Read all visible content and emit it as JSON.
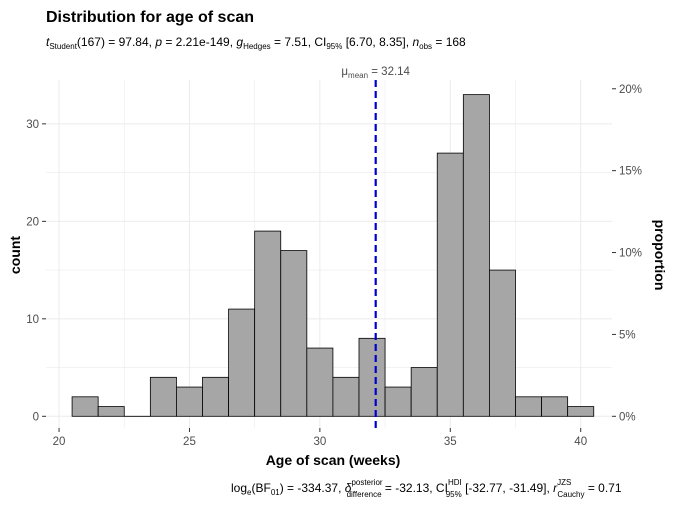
{
  "chart_data": {
    "type": "bar",
    "title": "Distribution for age of scan",
    "subtitle": {
      "stat_symbol": "t",
      "stat_sub": "Student",
      "stat_rest": "(167) = 97.84, ",
      "p_symbol": "p",
      "p_rest": " = 2.21e-149, ",
      "g_symbol": "g",
      "g_sub": "Hedges",
      "g_rest": " = 7.51, CI",
      "ci_sub": "95%",
      "ci_rest": " [6.70, 8.35], ",
      "n_symbol": "n",
      "n_sub": "obs",
      "n_rest": " = 168"
    },
    "xlabel": "Age of scan (weeks)",
    "ylabel": "count",
    "y2label": "proportion",
    "xlim": [
      19.5,
      41.2
    ],
    "ylim": [
      -1.2,
      34.5
    ],
    "x_ticks": [
      "20",
      "25",
      "30",
      "35",
      "40"
    ],
    "y_ticks": [
      "0",
      "10",
      "20",
      "30"
    ],
    "y2_ticks": [
      "0%",
      "5%",
      "10%",
      "15%",
      "20%"
    ],
    "bin_width": 1,
    "bins": [
      {
        "x0": 20.5,
        "count": 2
      },
      {
        "x0": 21.5,
        "count": 1
      },
      {
        "x0": 22.5,
        "count": 0
      },
      {
        "x0": 23.5,
        "count": 4
      },
      {
        "x0": 24.5,
        "count": 3
      },
      {
        "x0": 25.5,
        "count": 4
      },
      {
        "x0": 26.5,
        "count": 11
      },
      {
        "x0": 27.5,
        "count": 19
      },
      {
        "x0": 28.5,
        "count": 17
      },
      {
        "x0": 29.5,
        "count": 7
      },
      {
        "x0": 30.5,
        "count": 4
      },
      {
        "x0": 31.5,
        "count": 8
      },
      {
        "x0": 32.5,
        "count": 3
      },
      {
        "x0": 33.5,
        "count": 5
      },
      {
        "x0": 34.5,
        "count": 27
      },
      {
        "x0": 35.5,
        "count": 33
      },
      {
        "x0": 36.5,
        "count": 15
      },
      {
        "x0": 37.5,
        "count": 2
      },
      {
        "x0": 38.5,
        "count": 2
      },
      {
        "x0": 39.5,
        "count": 1
      }
    ],
    "total_n": 168,
    "mean": {
      "value": 32.14,
      "label_symbol": "μ",
      "label_sub": "mean",
      "label_rest": " = 32.14"
    },
    "caption": {
      "bf_pre": "log",
      "bf_sub": "e",
      "bf_rest": "(BF",
      "bf_sub2": "01",
      "bf_close": ") = -334.37, ",
      "delta_symbol": "δ",
      "delta_sup": "posterior",
      "delta_sub": "difference",
      "delta_rest": " = -32.13, CI",
      "ci_sup": "HDI",
      "ci_sub": "95%",
      "ci_rest": " [-32.77, -31.49], ",
      "r_symbol": "r",
      "r_sup": "JZS",
      "r_sub": "Cauchy",
      "r_rest": " = 0.71"
    },
    "colors": {
      "bar_fill": "#a6a6a6",
      "bar_stroke": "#000000",
      "mean_line": "#0000cc",
      "grid": "#ebebeb"
    },
    "grid": true
  }
}
